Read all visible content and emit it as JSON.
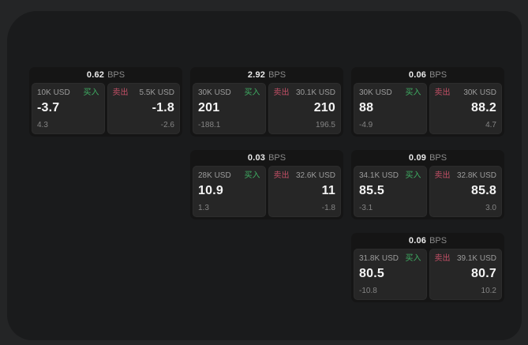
{
  "ui": {
    "bps_unit": "BPS",
    "colors": {
      "desktop_bg": "#242526",
      "window_bg": "#1a1b1c",
      "card_bg": "#151515",
      "panel_bg": "#262626",
      "buy_green": "#3fae63",
      "sell_red": "#c24f66",
      "primary_text": "#f4f4f4",
      "muted_text": "#9c9c9c"
    }
  },
  "cards": [
    {
      "bps": "0.62",
      "buy": {
        "notional": "10K USD",
        "side": "买入",
        "price": "-3.7",
        "delta": "4.3"
      },
      "sell": {
        "side": "卖出",
        "notional": "5.5K USD",
        "price": "-1.8",
        "delta": "-2.6"
      }
    },
    {
      "bps": "2.92",
      "buy": {
        "notional": "30K USD",
        "side": "买入",
        "price": "201",
        "delta": "-188.1"
      },
      "sell": {
        "side": "卖出",
        "notional": "30.1K USD",
        "price": "210",
        "delta": "196.5"
      }
    },
    {
      "bps": "0.06",
      "buy": {
        "notional": "30K USD",
        "side": "买入",
        "price": "88",
        "delta": "-4.9"
      },
      "sell": {
        "side": "卖出",
        "notional": "30K USD",
        "price": "88.2",
        "delta": "4.7"
      }
    },
    {
      "bps": "0.03",
      "buy": {
        "notional": "28K USD",
        "side": "买入",
        "price": "10.9",
        "delta": "1.3"
      },
      "sell": {
        "side": "卖出",
        "notional": "32.6K USD",
        "price": "11",
        "delta": "-1.8"
      }
    },
    {
      "bps": "0.09",
      "buy": {
        "notional": "34.1K USD",
        "side": "买入",
        "price": "85.5",
        "delta": "-3.1"
      },
      "sell": {
        "side": "卖出",
        "notional": "32.8K USD",
        "price": "85.8",
        "delta": "3.0"
      }
    },
    {
      "bps": "0.06",
      "buy": {
        "notional": "31.8K USD",
        "side": "买入",
        "price": "80.5",
        "delta": "-10.8"
      },
      "sell": {
        "side": "卖出",
        "notional": "39.1K USD",
        "price": "80.7",
        "delta": "10.2"
      }
    }
  ]
}
